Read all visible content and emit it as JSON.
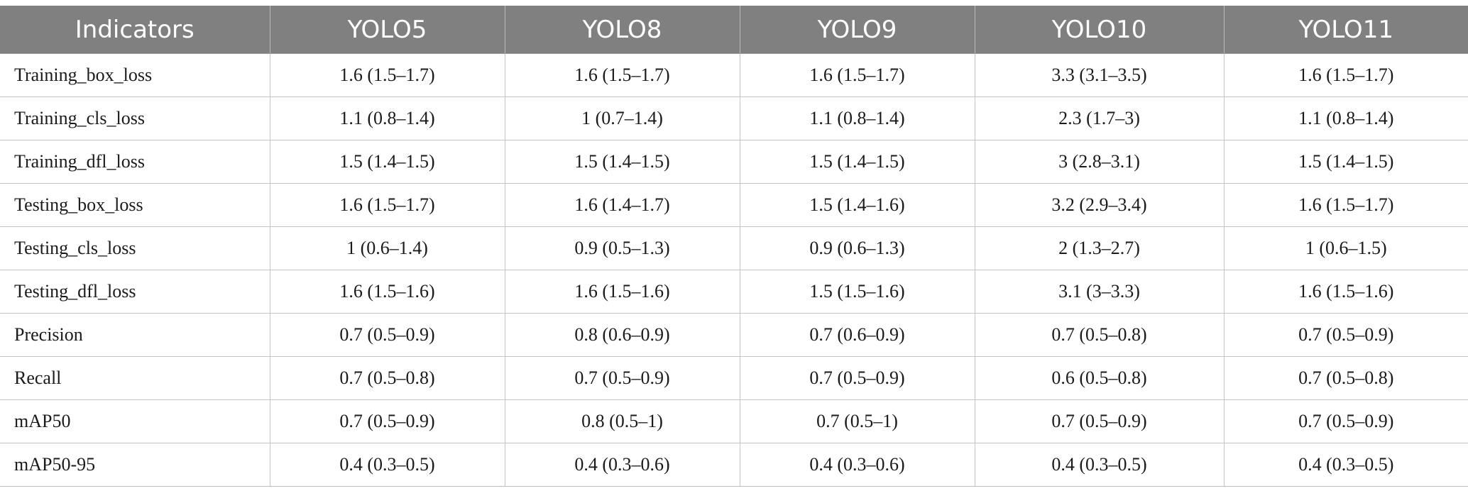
{
  "table": {
    "headers": [
      "Indicators",
      "YOLO5",
      "YOLO8",
      "YOLO9",
      "YOLO10",
      "YOLO11"
    ],
    "rows": [
      [
        "Training_box_loss",
        "1.6 (1.5–1.7)",
        "1.6 (1.5–1.7)",
        "1.6 (1.5–1.7)",
        "3.3 (3.1–3.5)",
        "1.6 (1.5–1.7)"
      ],
      [
        "Training_cls_loss",
        "1.1 (0.8–1.4)",
        "1 (0.7–1.4)",
        "1.1 (0.8–1.4)",
        "2.3 (1.7–3)",
        "1.1 (0.8–1.4)"
      ],
      [
        "Training_dfl_loss",
        "1.5 (1.4–1.5)",
        "1.5 (1.4–1.5)",
        "1.5 (1.4–1.5)",
        "3 (2.8–3.1)",
        "1.5 (1.4–1.5)"
      ],
      [
        "Testing_box_loss",
        "1.6 (1.5–1.7)",
        "1.6 (1.4–1.7)",
        "1.5 (1.4–1.6)",
        "3.2 (2.9–3.4)",
        "1.6 (1.5–1.7)"
      ],
      [
        "Testing_cls_loss",
        "1 (0.6–1.4)",
        "0.9 (0.5–1.3)",
        "0.9 (0.6–1.3)",
        "2 (1.3–2.7)",
        "1 (0.6–1.5)"
      ],
      [
        "Testing_dfl_loss",
        "1.6 (1.5–1.6)",
        "1.6 (1.5–1.6)",
        "1.5 (1.5–1.6)",
        "3.1 (3–3.3)",
        "1.6 (1.5–1.6)"
      ],
      [
        "Precision",
        "0.7 (0.5–0.9)",
        "0.8 (0.6–0.9)",
        "0.7 (0.6–0.9)",
        "0.7 (0.5–0.8)",
        "0.7 (0.5–0.9)"
      ],
      [
        "Recall",
        "0.7 (0.5–0.8)",
        "0.7 (0.5–0.9)",
        "0.7 (0.5–0.9)",
        "0.6 (0.5–0.8)",
        "0.7 (0.5–0.8)"
      ],
      [
        "mAP50",
        "0.7 (0.5–0.9)",
        "0.8 (0.5–1)",
        "0.7 (0.5–1)",
        "0.7 (0.5–0.9)",
        "0.7 (0.5–0.9)"
      ],
      [
        "mAP50-95",
        "0.4 (0.3–0.5)",
        "0.4 (0.3–0.6)",
        "0.4 (0.3–0.6)",
        "0.4 (0.3–0.5)",
        "0.4 (0.3–0.5)"
      ]
    ]
  },
  "colors": {
    "header_bg": "#808080",
    "header_text": "#ffffff",
    "cell_text": "#1a1a1a",
    "grid": "#c4c4c4"
  }
}
